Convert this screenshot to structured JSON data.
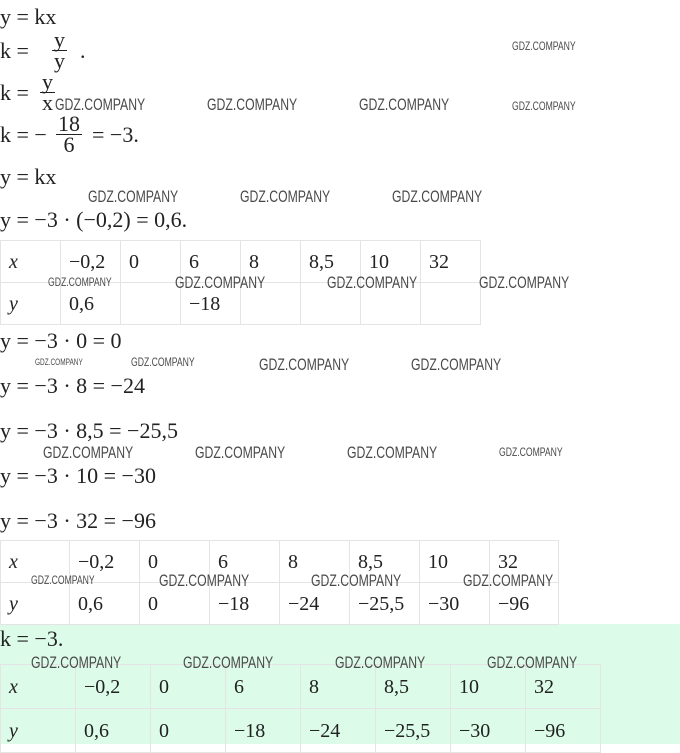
{
  "watermark": "GDZ.COMPANY",
  "colors": {
    "answer_background": "#dcfce9",
    "text": "#222222",
    "grid": "#e4e4e4"
  },
  "lines": {
    "l1": "y = kx",
    "l2_left": "k = ",
    "l2_num": "y",
    "l2_den": "y",
    "l2_end": ".",
    "l3_left": "k = ",
    "l3_num": "y",
    "l3_den": "x",
    "l4_left": "k = −",
    "l4_num": "18",
    "l4_den": "6",
    "l4_end": "= −3.",
    "l5": "y = kx",
    "l6": "y = −3 · (−0,2) = 0,6.",
    "l7": "y = −3 · 0 = 0",
    "l8": "y = −3 · 8 = −24",
    "l9": "y = −3 · 8,5 = −25,5",
    "l10": "y = −3 · 10 = −30",
    "l11": "y = −3 · 32 = −96",
    "answer": "k = −3."
  },
  "tables": [
    {
      "x": [
        "x",
        "−0,2",
        "0",
        "6",
        "8",
        "8,5",
        "10",
        "32"
      ],
      "y": [
        "y",
        "0,6",
        "",
        "−18",
        "",
        "",
        "",
        ""
      ]
    },
    {
      "x": [
        "x",
        "−0,2",
        "0",
        "6",
        "8",
        "8,5",
        "10",
        "32"
      ],
      "y": [
        "y",
        "0,6",
        "0",
        "−18",
        "−24",
        "−25,5",
        "−30",
        "−96"
      ]
    },
    {
      "x": [
        "x",
        "−0,2",
        "0",
        "6",
        "8",
        "8,5",
        "10",
        "32"
      ],
      "y": [
        "y",
        "0,6",
        "0",
        "−18",
        "−24",
        "−25,5",
        "−30",
        "−96"
      ]
    }
  ]
}
